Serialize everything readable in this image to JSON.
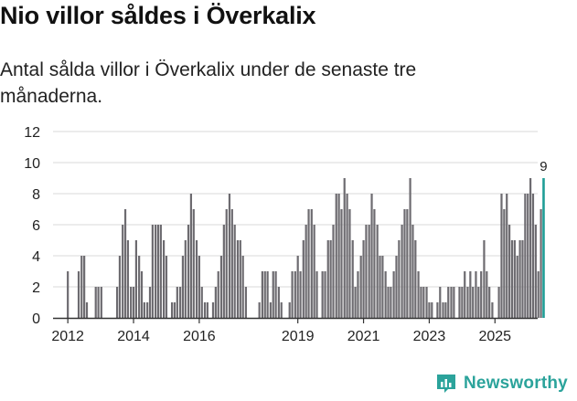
{
  "title": "Nio villor såldes i Överkalix",
  "subtitle": "Antal sålda villor i Överkalix under de senaste tre månaderna.",
  "brand": {
    "name": "Newsworthy",
    "icon": "newsworthy-logo-icon"
  },
  "colors": {
    "bar": "#6d6b70",
    "highlight": "#1f9e96",
    "grid": "#dadada",
    "axis": "#333333"
  },
  "chart_data": {
    "type": "bar",
    "title": "Nio villor såldes i Överkalix",
    "xlabel": "",
    "ylabel": "",
    "ylim": [
      0,
      12
    ],
    "yticks": [
      0,
      2,
      4,
      6,
      8,
      10,
      12
    ],
    "xlim": [
      2011.55,
      2026.3
    ],
    "xticks": [
      {
        "label": "2012",
        "value": 2012
      },
      {
        "label": "2014",
        "value": 2014
      },
      {
        "label": "2016",
        "value": 2016
      },
      {
        "label": "2019",
        "value": 2019
      },
      {
        "label": "2021",
        "value": 2021
      },
      {
        "label": "2023",
        "value": 2023
      },
      {
        "label": "2025",
        "value": 2025
      }
    ],
    "series": [
      {
        "name": "Sålda villor",
        "unit": "monthly"
      }
    ],
    "bars": [
      {
        "x": 2012.0,
        "v": 3
      },
      {
        "x": 2012.33,
        "v": 3
      },
      {
        "x": 2012.42,
        "v": 4
      },
      {
        "x": 2012.5,
        "v": 4
      },
      {
        "x": 2012.58,
        "v": 1
      },
      {
        "x": 2012.85,
        "v": 2
      },
      {
        "x": 2012.93,
        "v": 2
      },
      {
        "x": 2013.02,
        "v": 2
      },
      {
        "x": 2013.5,
        "v": 2
      },
      {
        "x": 2013.58,
        "v": 4
      },
      {
        "x": 2013.67,
        "v": 6
      },
      {
        "x": 2013.75,
        "v": 7
      },
      {
        "x": 2013.83,
        "v": 5
      },
      {
        "x": 2013.92,
        "v": 2
      },
      {
        "x": 2014.0,
        "v": 2
      },
      {
        "x": 2014.08,
        "v": 5
      },
      {
        "x": 2014.17,
        "v": 4
      },
      {
        "x": 2014.25,
        "v": 3
      },
      {
        "x": 2014.33,
        "v": 1
      },
      {
        "x": 2014.42,
        "v": 1
      },
      {
        "x": 2014.5,
        "v": 2
      },
      {
        "x": 2014.58,
        "v": 6
      },
      {
        "x": 2014.67,
        "v": 6
      },
      {
        "x": 2014.75,
        "v": 6
      },
      {
        "x": 2014.83,
        "v": 6
      },
      {
        "x": 2014.92,
        "v": 5
      },
      {
        "x": 2015.0,
        "v": 4
      },
      {
        "x": 2015.17,
        "v": 1
      },
      {
        "x": 2015.25,
        "v": 1
      },
      {
        "x": 2015.33,
        "v": 2
      },
      {
        "x": 2015.42,
        "v": 2
      },
      {
        "x": 2015.5,
        "v": 4
      },
      {
        "x": 2015.58,
        "v": 5
      },
      {
        "x": 2015.67,
        "v": 6
      },
      {
        "x": 2015.75,
        "v": 8
      },
      {
        "x": 2015.83,
        "v": 7
      },
      {
        "x": 2015.92,
        "v": 5
      },
      {
        "x": 2016.0,
        "v": 4
      },
      {
        "x": 2016.08,
        "v": 2
      },
      {
        "x": 2016.17,
        "v": 1
      },
      {
        "x": 2016.25,
        "v": 1
      },
      {
        "x": 2016.42,
        "v": 1
      },
      {
        "x": 2016.5,
        "v": 2
      },
      {
        "x": 2016.58,
        "v": 3
      },
      {
        "x": 2016.67,
        "v": 4
      },
      {
        "x": 2016.75,
        "v": 6
      },
      {
        "x": 2016.83,
        "v": 7
      },
      {
        "x": 2016.92,
        "v": 8
      },
      {
        "x": 2017.0,
        "v": 7
      },
      {
        "x": 2017.08,
        "v": 6
      },
      {
        "x": 2017.17,
        "v": 5
      },
      {
        "x": 2017.25,
        "v": 5
      },
      {
        "x": 2017.33,
        "v": 4
      },
      {
        "x": 2017.42,
        "v": 2
      },
      {
        "x": 2017.83,
        "v": 1
      },
      {
        "x": 2017.92,
        "v": 3
      },
      {
        "x": 2018.0,
        "v": 3
      },
      {
        "x": 2018.08,
        "v": 3
      },
      {
        "x": 2018.17,
        "v": 1
      },
      {
        "x": 2018.25,
        "v": 3
      },
      {
        "x": 2018.33,
        "v": 3
      },
      {
        "x": 2018.42,
        "v": 2
      },
      {
        "x": 2018.5,
        "v": 1
      },
      {
        "x": 2018.75,
        "v": 1
      },
      {
        "x": 2018.83,
        "v": 3
      },
      {
        "x": 2018.92,
        "v": 3
      },
      {
        "x": 2019.0,
        "v": 4
      },
      {
        "x": 2019.08,
        "v": 3
      },
      {
        "x": 2019.17,
        "v": 5
      },
      {
        "x": 2019.25,
        "v": 6
      },
      {
        "x": 2019.33,
        "v": 7
      },
      {
        "x": 2019.42,
        "v": 7
      },
      {
        "x": 2019.5,
        "v": 6
      },
      {
        "x": 2019.58,
        "v": 3
      },
      {
        "x": 2019.75,
        "v": 3
      },
      {
        "x": 2019.83,
        "v": 3
      },
      {
        "x": 2019.92,
        "v": 5
      },
      {
        "x": 2020.0,
        "v": 5
      },
      {
        "x": 2020.08,
        "v": 6
      },
      {
        "x": 2020.17,
        "v": 8
      },
      {
        "x": 2020.25,
        "v": 8
      },
      {
        "x": 2020.33,
        "v": 7
      },
      {
        "x": 2020.42,
        "v": 9
      },
      {
        "x": 2020.5,
        "v": 8
      },
      {
        "x": 2020.58,
        "v": 7
      },
      {
        "x": 2020.67,
        "v": 5
      },
      {
        "x": 2020.75,
        "v": 2
      },
      {
        "x": 2020.83,
        "v": 3
      },
      {
        "x": 2020.92,
        "v": 4
      },
      {
        "x": 2021.0,
        "v": 5
      },
      {
        "x": 2021.08,
        "v": 6
      },
      {
        "x": 2021.17,
        "v": 6
      },
      {
        "x": 2021.25,
        "v": 8
      },
      {
        "x": 2021.33,
        "v": 7
      },
      {
        "x": 2021.42,
        "v": 6
      },
      {
        "x": 2021.5,
        "v": 4
      },
      {
        "x": 2021.58,
        "v": 4
      },
      {
        "x": 2021.67,
        "v": 3
      },
      {
        "x": 2021.75,
        "v": 2
      },
      {
        "x": 2021.83,
        "v": 2
      },
      {
        "x": 2021.92,
        "v": 3
      },
      {
        "x": 2022.0,
        "v": 4
      },
      {
        "x": 2022.08,
        "v": 5
      },
      {
        "x": 2022.17,
        "v": 6
      },
      {
        "x": 2022.25,
        "v": 7
      },
      {
        "x": 2022.33,
        "v": 7
      },
      {
        "x": 2022.42,
        "v": 9
      },
      {
        "x": 2022.5,
        "v": 6
      },
      {
        "x": 2022.58,
        "v": 5
      },
      {
        "x": 2022.67,
        "v": 3
      },
      {
        "x": 2022.75,
        "v": 2
      },
      {
        "x": 2022.83,
        "v": 2
      },
      {
        "x": 2022.92,
        "v": 2
      },
      {
        "x": 2023.0,
        "v": 1
      },
      {
        "x": 2023.08,
        "v": 1
      },
      {
        "x": 2023.25,
        "v": 1
      },
      {
        "x": 2023.33,
        "v": 2
      },
      {
        "x": 2023.42,
        "v": 1
      },
      {
        "x": 2023.5,
        "v": 1
      },
      {
        "x": 2023.58,
        "v": 2
      },
      {
        "x": 2023.67,
        "v": 2
      },
      {
        "x": 2023.75,
        "v": 2
      },
      {
        "x": 2023.92,
        "v": 2
      },
      {
        "x": 2024.0,
        "v": 2
      },
      {
        "x": 2024.08,
        "v": 3
      },
      {
        "x": 2024.17,
        "v": 2
      },
      {
        "x": 2024.25,
        "v": 3
      },
      {
        "x": 2024.33,
        "v": 2
      },
      {
        "x": 2024.42,
        "v": 3
      },
      {
        "x": 2024.5,
        "v": 2
      },
      {
        "x": 2024.58,
        "v": 3
      },
      {
        "x": 2024.67,
        "v": 5
      },
      {
        "x": 2024.75,
        "v": 3
      },
      {
        "x": 2024.83,
        "v": 2
      },
      {
        "x": 2024.92,
        "v": 1
      },
      {
        "x": 2025.12,
        "v": 2
      },
      {
        "x": 2025.2,
        "v": 8
      },
      {
        "x": 2025.28,
        "v": 7
      },
      {
        "x": 2025.36,
        "v": 8
      },
      {
        "x": 2025.44,
        "v": 6
      },
      {
        "x": 2025.52,
        "v": 5
      },
      {
        "x": 2025.6,
        "v": 5
      },
      {
        "x": 2025.68,
        "v": 4
      },
      {
        "x": 2025.76,
        "v": 5
      },
      {
        "x": 2025.84,
        "v": 5
      },
      {
        "x": 2025.92,
        "v": 8
      },
      {
        "x": 2026.0,
        "v": 8
      },
      {
        "x": 2026.08,
        "v": 9
      },
      {
        "x": 2026.16,
        "v": 8
      },
      {
        "x": 2026.24,
        "v": 6
      },
      {
        "x": 2026.32,
        "v": 3
      },
      {
        "x": 2026.4,
        "v": 7
      }
    ],
    "highlight": {
      "x": 2026.48,
      "v": 9,
      "label": "9"
    }
  }
}
